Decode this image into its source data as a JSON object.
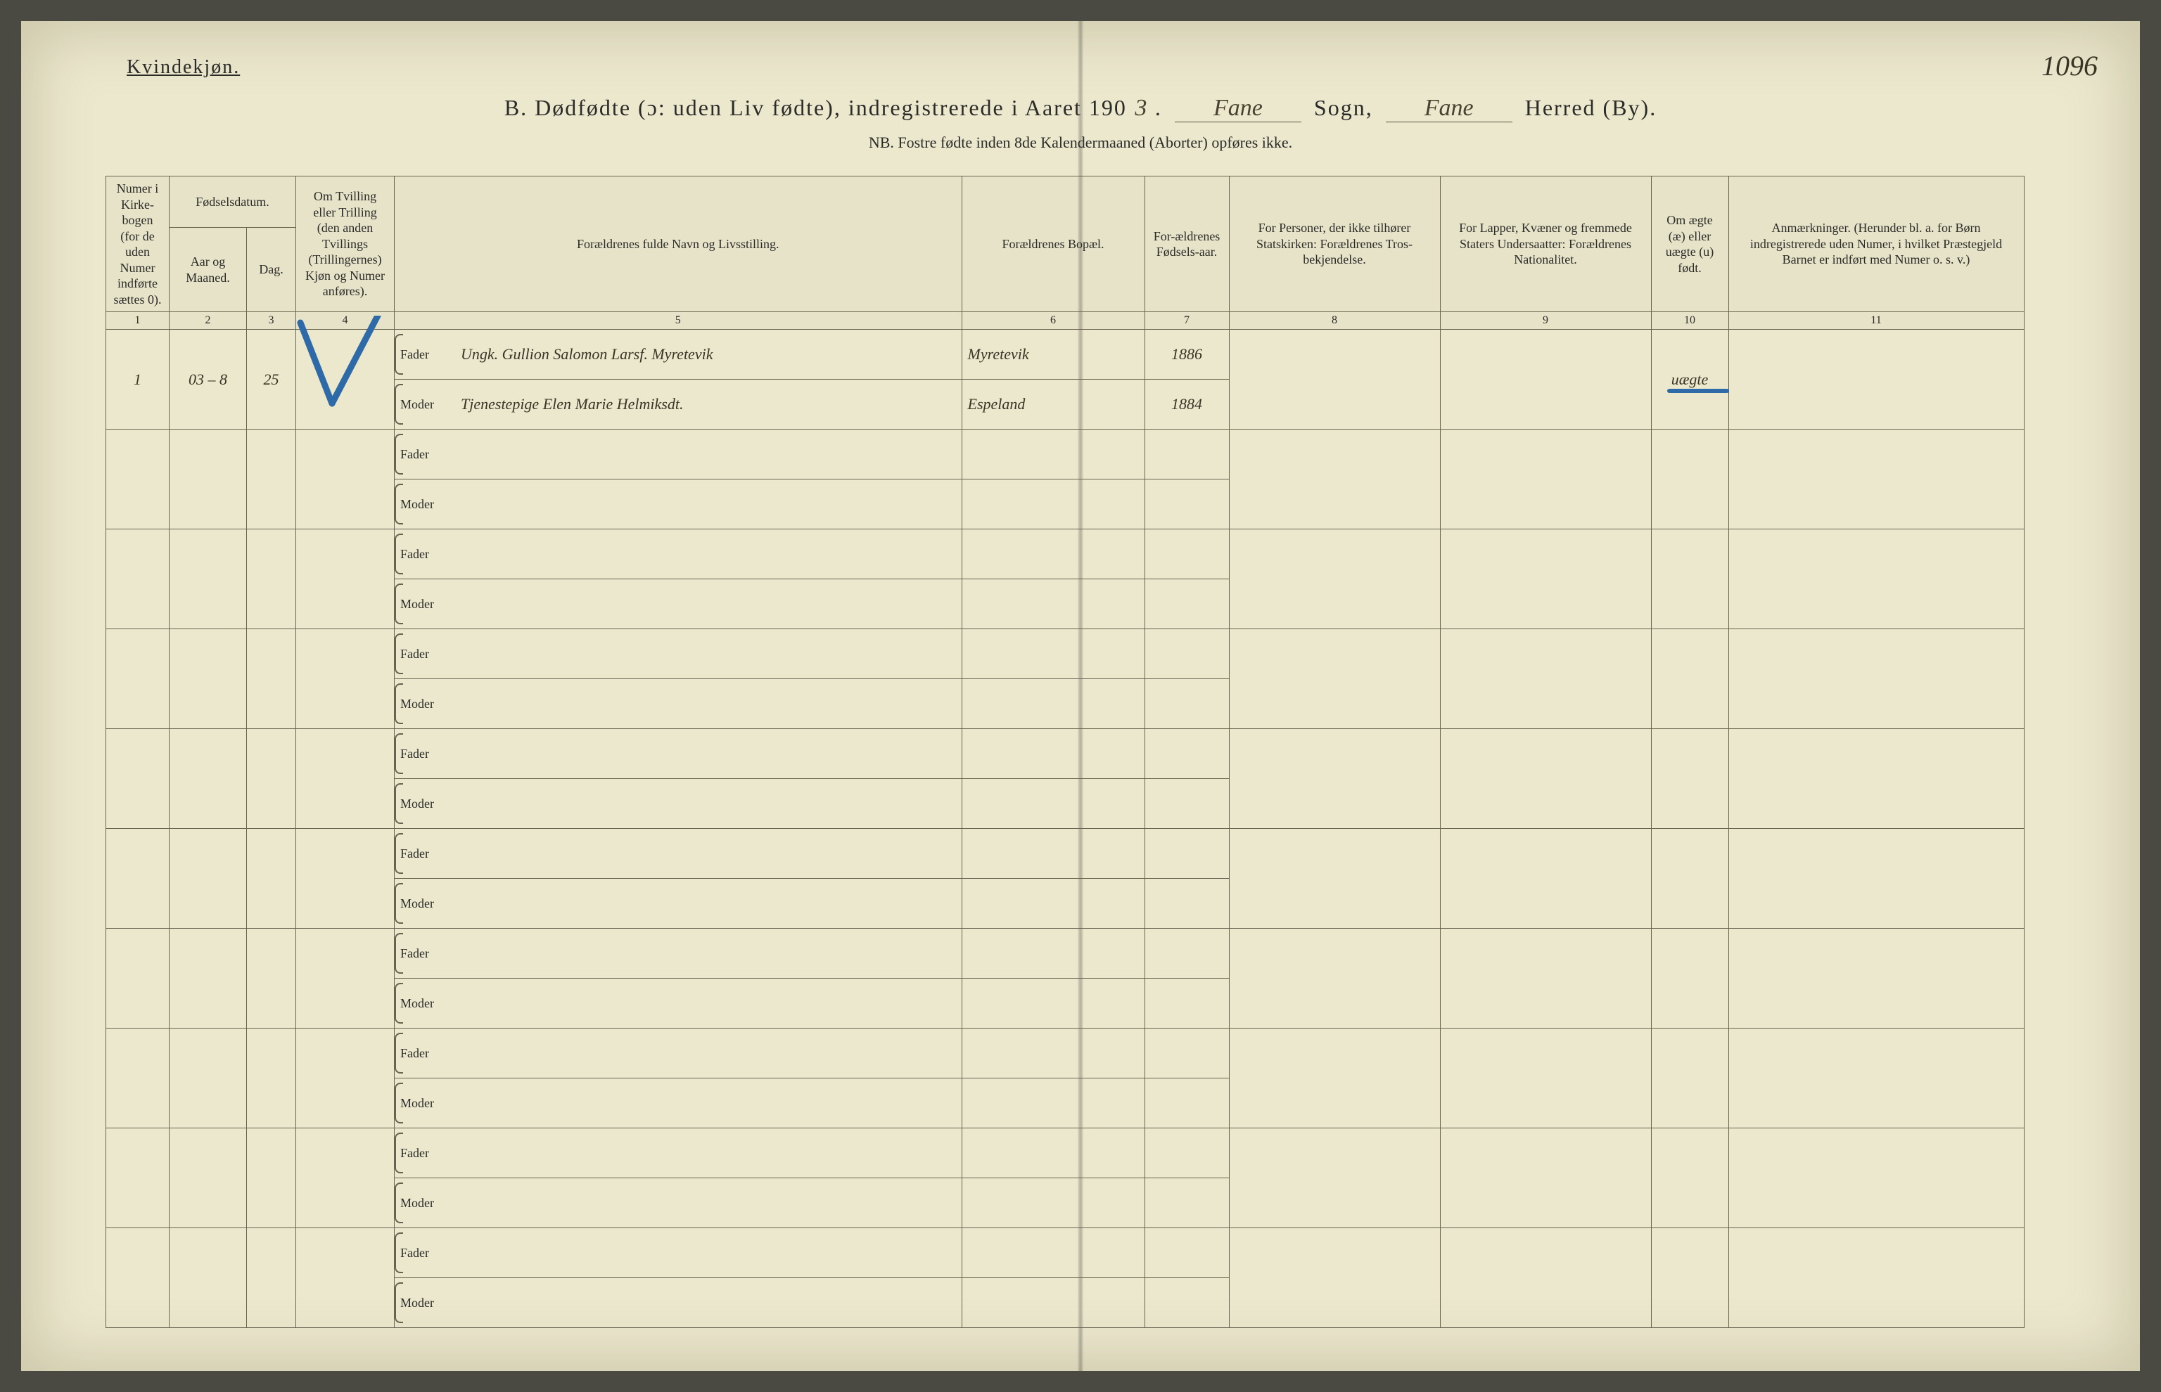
{
  "corner_label": "Kvindekjøn.",
  "page_number_hand": "1096",
  "title": {
    "prefix": "B.  Dødfødte (ɔ: uden Liv fødte), indregistrerede i Aaret 190",
    "year_last_digit": "3",
    "after_year_period": ".",
    "sogn_value": "Fane",
    "sogn_label": "Sogn,",
    "herred_value": "Fane",
    "herred_label": "Herred (By)."
  },
  "nb_line": "NB.  Fostre fødte inden 8de Kalendermaaned (Aborter) opføres ikke.",
  "columns": {
    "c1": "Numer i Kirke-bogen (for de uden Numer indførte sættes 0).",
    "c2a": "Fødselsdatum.",
    "c2_aar": "Aar og Maaned.",
    "c2_dag": "Dag.",
    "c4": "Om Tvilling eller Trilling (den anden Tvillings (Trillingernes) Kjøn og Numer anføres).",
    "c5": "Forældrenes fulde Navn og Livsstilling.",
    "c6": "Forældrenes Bopæl.",
    "c7": "For-ældrenes Fødsels-aar.",
    "c8": "For Personer, der ikke tilhører Statskirken: Forældrenes Tros-bekjendelse.",
    "c9": "For Lapper, Kvæner og fremmede Staters Undersaatter: Forældrenes Nationalitet.",
    "c10": "Om ægte (æ) eller uægte (u) født.",
    "c11": "Anmærkninger. (Herunder bl. a. for Børn indregistrerede uden Numer, i hvilket Præstegjeld Barnet er indført med Numer o. s. v.)"
  },
  "col_nums": [
    "1",
    "2",
    "3",
    "4",
    "5",
    "6",
    "7",
    "8",
    "9",
    "10",
    "11"
  ],
  "fm_labels": {
    "fader": "Fader",
    "moder": "Moder"
  },
  "entry": {
    "num": "1",
    "aar_maaned": "03 – 8",
    "dag": "25",
    "fader_name": "Ungk. Gullion Salomon Larsf. Myretevik",
    "fader_bopel": "Myretevik",
    "fader_aar": "1886",
    "moder_name": "Tjenestepige Elen Marie Helmiksdt.",
    "moder_bopel": "Espeland",
    "moder_aar": "1884",
    "aegte": "uægte"
  },
  "blank_row_count": 9,
  "colors": {
    "paper": "#ece8ce",
    "ink": "#2b2b28",
    "rule": "#6a6250",
    "blue_pencil": "#2f6aa8"
  }
}
